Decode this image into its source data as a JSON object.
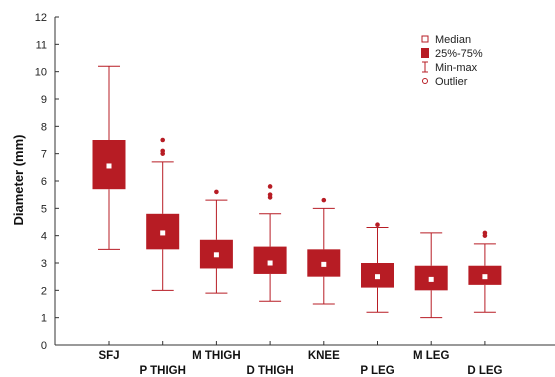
{
  "chart_data": {
    "type": "boxplot",
    "title": "",
    "xlabel": "",
    "ylabel": "Diameter (mm)",
    "ylim": [
      0,
      12
    ],
    "yticks": [
      0,
      1,
      2,
      3,
      4,
      5,
      6,
      7,
      8,
      9,
      10,
      11,
      12
    ],
    "grid": false,
    "legend_position": "top-right",
    "colors": {
      "box": "#b71c24",
      "whisker": "#b71c24",
      "median": "#ffffff"
    },
    "legend": [
      {
        "key": "median",
        "label": "Median"
      },
      {
        "key": "iqr",
        "label": "25%-75%"
      },
      {
        "key": "range",
        "label": "Min-max"
      },
      {
        "key": "outlier",
        "label": "Outlier"
      }
    ],
    "categories": [
      "SFJ",
      "P THIGH",
      "M THIGH",
      "D THIGH",
      "KNEE",
      "P LEG",
      "M LEG",
      "D LEG"
    ],
    "boxes": [
      {
        "label": "SFJ",
        "min": 3.5,
        "q1": 5.7,
        "median": 6.55,
        "q3": 7.5,
        "max": 10.2,
        "outliers": []
      },
      {
        "label": "P THIGH",
        "min": 2.0,
        "q1": 3.5,
        "median": 4.1,
        "q3": 4.8,
        "max": 6.7,
        "outliers": [
          7.0,
          7.1,
          7.5
        ]
      },
      {
        "label": "M THIGH",
        "min": 1.9,
        "q1": 2.8,
        "median": 3.3,
        "q3": 3.85,
        "max": 5.3,
        "outliers": [
          5.6
        ]
      },
      {
        "label": "D THIGH",
        "min": 1.6,
        "q1": 2.6,
        "median": 3.0,
        "q3": 3.6,
        "max": 4.8,
        "outliers": [
          5.4,
          5.5,
          5.8
        ]
      },
      {
        "label": "KNEE",
        "min": 1.5,
        "q1": 2.5,
        "median": 2.95,
        "q3": 3.5,
        "max": 5.0,
        "outliers": [
          5.3
        ]
      },
      {
        "label": "P LEG",
        "min": 1.2,
        "q1": 2.1,
        "median": 2.5,
        "q3": 3.0,
        "max": 4.3,
        "outliers": [
          4.4
        ]
      },
      {
        "label": "M LEG",
        "min": 1.0,
        "q1": 2.0,
        "median": 2.4,
        "q3": 2.9,
        "max": 4.1,
        "outliers": []
      },
      {
        "label": "D LEG",
        "min": 1.2,
        "q1": 2.2,
        "median": 2.5,
        "q3": 2.9,
        "max": 3.7,
        "outliers": [
          4.0,
          4.1
        ]
      }
    ]
  }
}
